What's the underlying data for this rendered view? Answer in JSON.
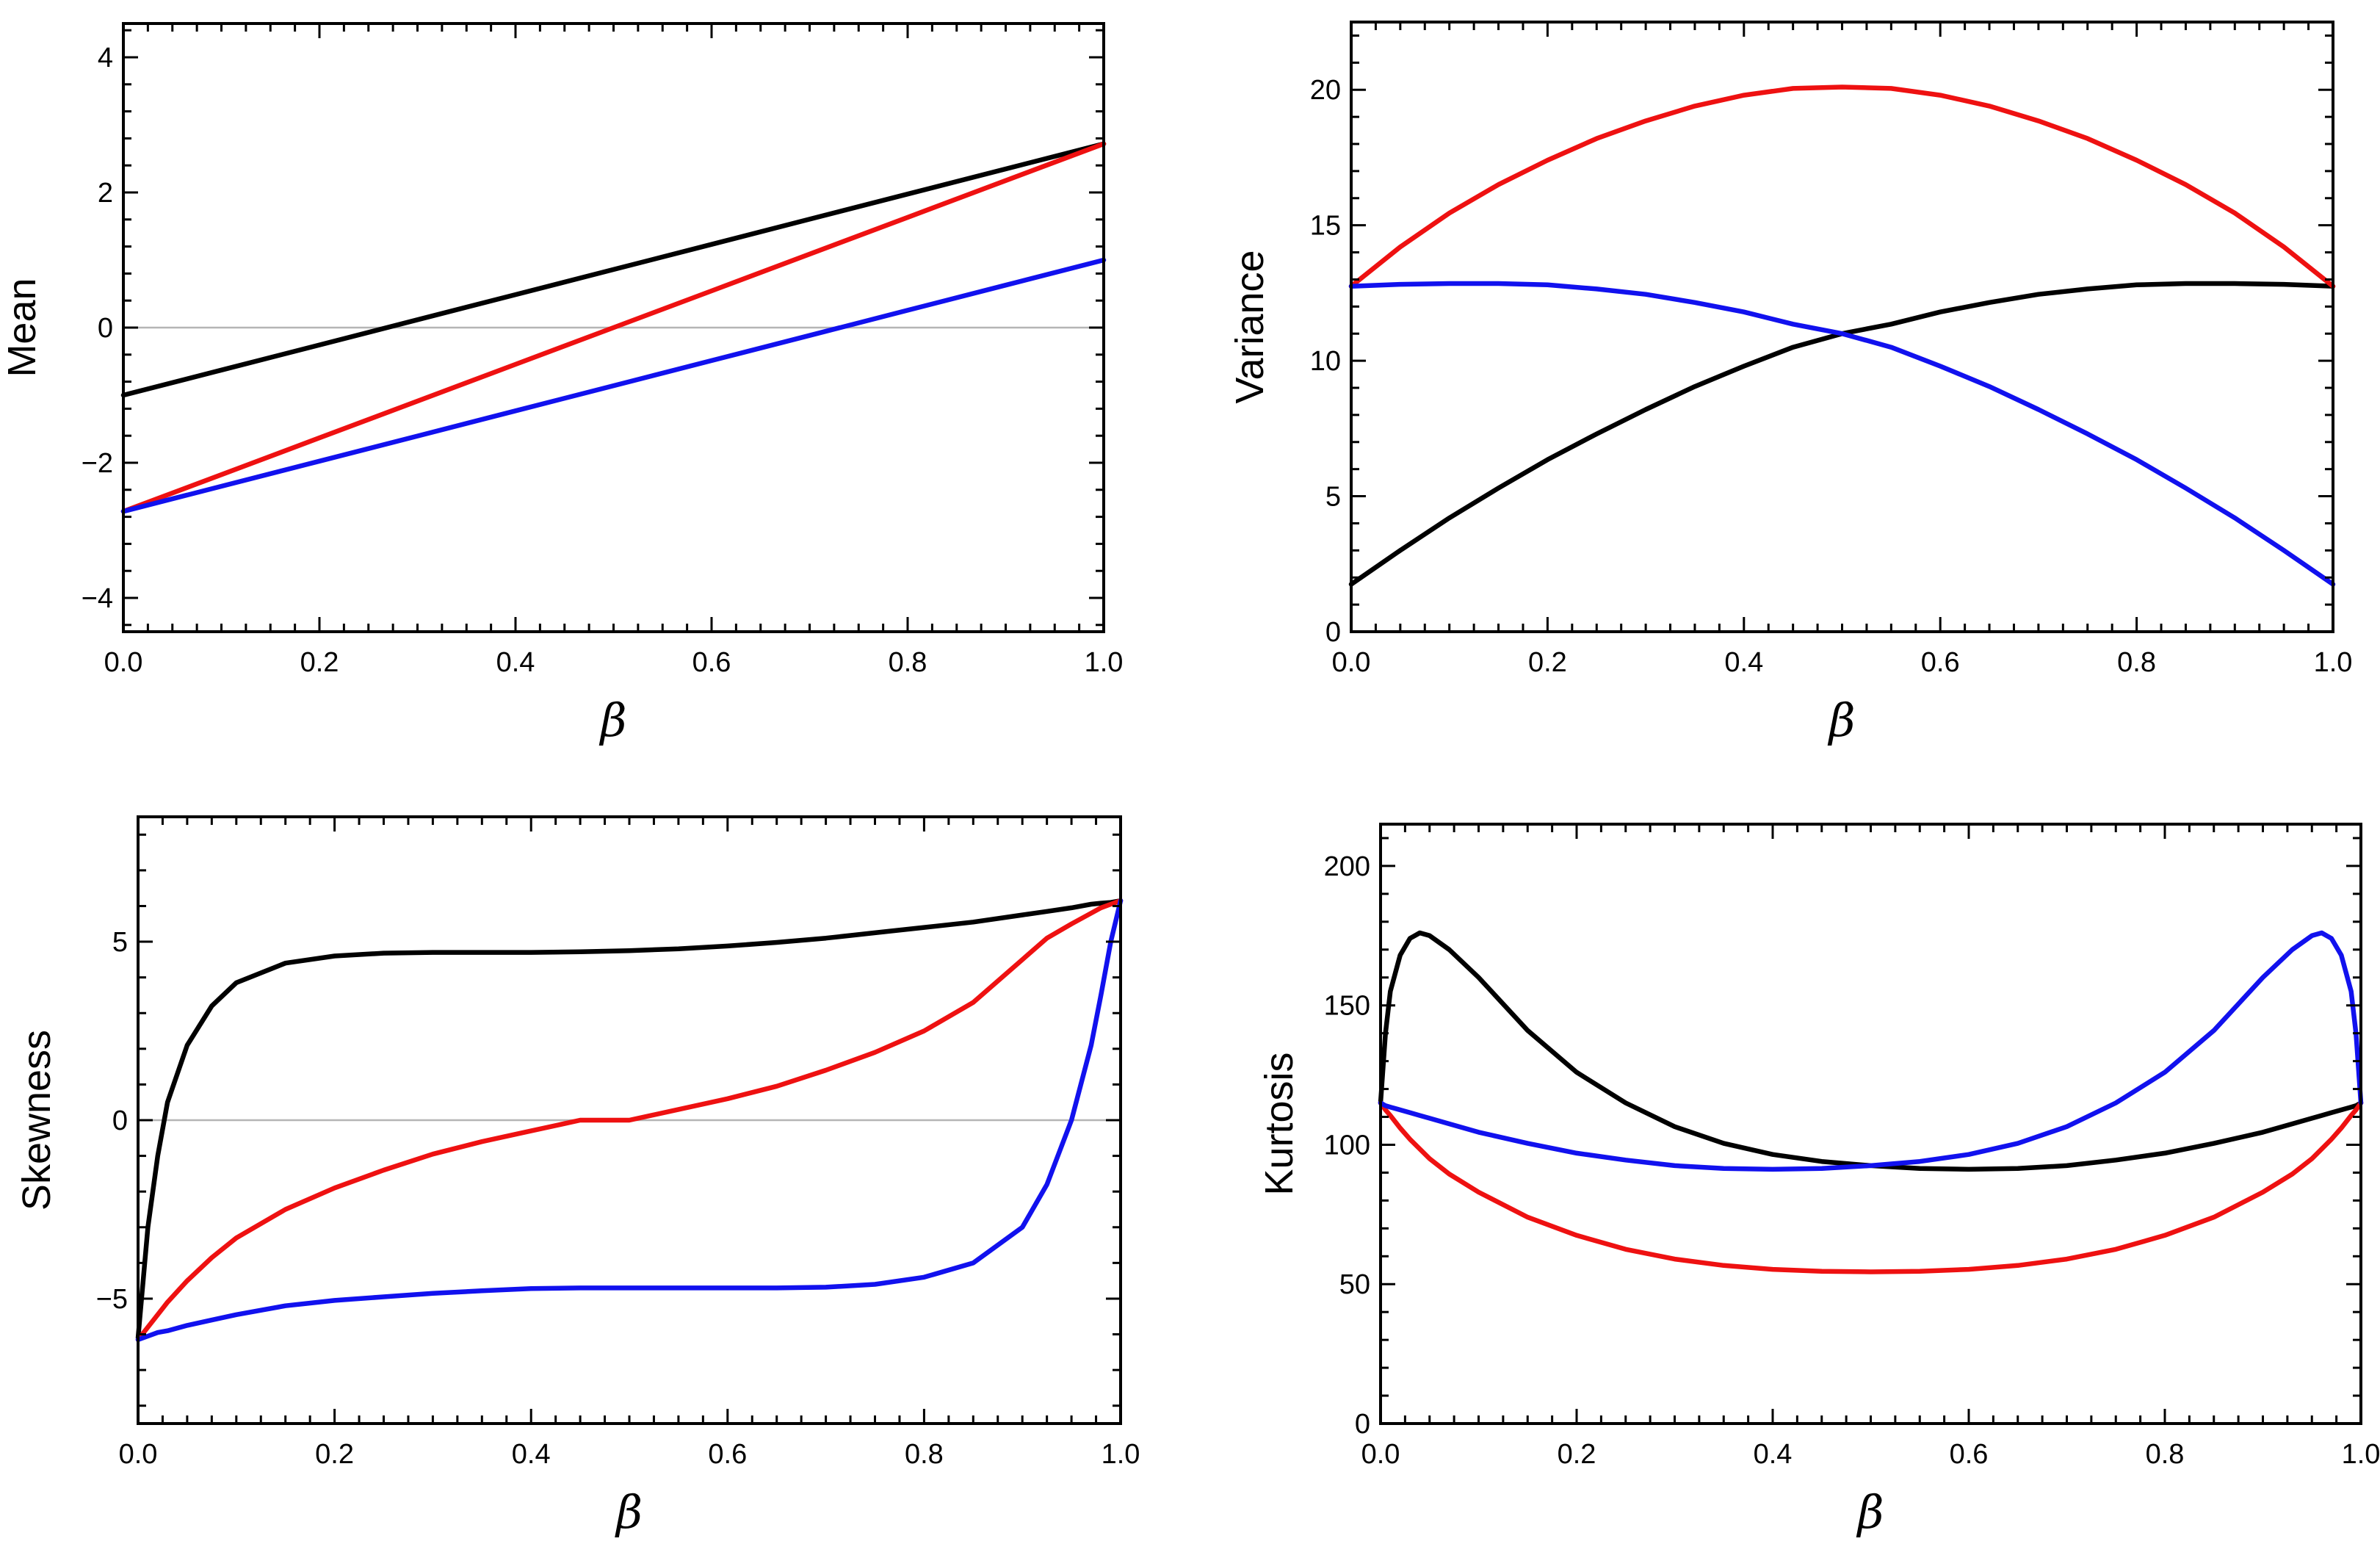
{
  "chart_data": [
    {
      "type": "line",
      "id": "mean",
      "title": "",
      "xlabel": "β",
      "ylabel": "Mean",
      "xlim": [
        0,
        1
      ],
      "ylim": [
        -4.5,
        4.5
      ],
      "xticks": [
        0.0,
        0.2,
        0.4,
        0.6,
        0.8,
        1.0
      ],
      "xtick_labels": [
        "0.0",
        "0.2",
        "0.4",
        "0.6",
        "0.8",
        "1.0"
      ],
      "yticks": [
        -4,
        -2,
        0,
        2,
        4
      ],
      "ytick_labels": [
        "−4",
        "−2",
        "0",
        "2",
        "4"
      ],
      "zero_line": true,
      "x": [
        0.0,
        0.1,
        0.2,
        0.3,
        0.4,
        0.5,
        0.6,
        0.7,
        0.8,
        0.9,
        1.0
      ],
      "series": [
        {
          "name": "black",
          "color": "#000000",
          "values": [
            -1.0,
            -0.628,
            -0.256,
            0.116,
            0.488,
            0.86,
            1.232,
            1.604,
            1.976,
            2.348,
            2.72
          ]
        },
        {
          "name": "red",
          "color": "#ee1111",
          "values": [
            -2.72,
            -2.176,
            -1.632,
            -1.088,
            -0.544,
            0.0,
            0.544,
            1.088,
            1.632,
            2.176,
            2.72
          ]
        },
        {
          "name": "blue",
          "color": "#1111ee",
          "values": [
            -2.72,
            -2.348,
            -1.976,
            -1.604,
            -1.232,
            -0.86,
            -0.488,
            -0.116,
            0.256,
            0.628,
            1.0
          ]
        }
      ]
    },
    {
      "type": "line",
      "id": "variance",
      "title": "",
      "xlabel": "β",
      "ylabel": "Variance",
      "xlim": [
        0,
        1
      ],
      "ylim": [
        0,
        22.5
      ],
      "xticks": [
        0.0,
        0.2,
        0.4,
        0.6,
        0.8,
        1.0
      ],
      "xtick_labels": [
        "0.0",
        "0.2",
        "0.4",
        "0.6",
        "0.8",
        "1.0"
      ],
      "yticks": [
        0,
        5,
        10,
        15,
        20
      ],
      "ytick_labels": [
        "0",
        "5",
        "10",
        "15",
        "20"
      ],
      "zero_line": false,
      "x": [
        0.0,
        0.05,
        0.1,
        0.15,
        0.2,
        0.25,
        0.3,
        0.35,
        0.4,
        0.45,
        0.5,
        0.55,
        0.6,
        0.65,
        0.7,
        0.75,
        0.8,
        0.85,
        0.9,
        0.95,
        1.0
      ],
      "series": [
        {
          "name": "black",
          "color": "#000000",
          "values": [
            1.75,
            3.0,
            4.2,
            5.3,
            6.35,
            7.3,
            8.2,
            9.05,
            9.8,
            10.5,
            11.0,
            11.35,
            11.8,
            12.15,
            12.45,
            12.65,
            12.8,
            12.85,
            12.85,
            12.82,
            12.75
          ]
        },
        {
          "name": "red",
          "color": "#ee1111",
          "values": [
            12.75,
            14.2,
            15.45,
            16.5,
            17.4,
            18.2,
            18.85,
            19.4,
            19.8,
            20.05,
            20.1,
            20.05,
            19.8,
            19.4,
            18.85,
            18.2,
            17.4,
            16.5,
            15.45,
            14.2,
            12.75
          ]
        },
        {
          "name": "blue",
          "color": "#1111ee",
          "values": [
            12.75,
            12.82,
            12.85,
            12.85,
            12.8,
            12.65,
            12.45,
            12.15,
            11.8,
            11.35,
            11.0,
            10.5,
            9.8,
            9.05,
            8.2,
            7.3,
            6.35,
            5.3,
            4.2,
            3.0,
            1.75
          ]
        }
      ]
    },
    {
      "type": "line",
      "id": "skewness",
      "title": "",
      "xlabel": "β",
      "ylabel": "Skewness",
      "xlim": [
        0,
        1
      ],
      "ylim": [
        -8.5,
        8.5
      ],
      "xticks": [
        0.0,
        0.2,
        0.4,
        0.6,
        0.8,
        1.0
      ],
      "xtick_labels": [
        "0.0",
        "0.2",
        "0.4",
        "0.6",
        "0.8",
        "1.0"
      ],
      "yticks": [
        -5,
        0,
        5
      ],
      "ytick_labels": [
        "−5",
        "0",
        "5"
      ],
      "zero_line": true,
      "x": [
        0.0,
        0.01,
        0.02,
        0.03,
        0.05,
        0.075,
        0.1,
        0.15,
        0.2,
        0.25,
        0.3,
        0.35,
        0.4,
        0.45,
        0.5,
        0.55,
        0.6,
        0.65,
        0.7,
        0.75,
        0.8,
        0.85,
        0.9,
        0.925,
        0.95,
        0.97,
        0.98,
        0.99,
        1.0
      ],
      "series": [
        {
          "name": "black",
          "color": "#000000",
          "values": [
            -6.1,
            -3.0,
            -1.0,
            0.5,
            2.1,
            3.2,
            3.85,
            4.4,
            4.6,
            4.68,
            4.7,
            4.7,
            4.7,
            4.72,
            4.75,
            4.8,
            4.88,
            4.98,
            5.1,
            5.25,
            5.4,
            5.55,
            5.75,
            5.85,
            5.95,
            6.05,
            6.08,
            6.1,
            6.15
          ]
        },
        {
          "name": "red",
          "color": "#ee1111",
          "values": [
            -6.15,
            -5.8,
            -5.45,
            -5.1,
            -4.5,
            -3.85,
            -3.3,
            -2.5,
            -1.9,
            -1.4,
            -0.95,
            -0.6,
            -0.3,
            0.0,
            0.0,
            0.3,
            0.6,
            0.95,
            1.4,
            1.9,
            2.5,
            3.3,
            4.5,
            5.1,
            5.5,
            5.8,
            5.95,
            6.05,
            6.15
          ]
        },
        {
          "name": "blue",
          "color": "#1111ee",
          "values": [
            -6.15,
            -6.05,
            -5.95,
            -5.9,
            -5.75,
            -5.6,
            -5.45,
            -5.2,
            -5.05,
            -4.95,
            -4.85,
            -4.78,
            -4.72,
            -4.7,
            -4.7,
            -4.7,
            -4.7,
            -4.7,
            -4.68,
            -4.6,
            -4.4,
            -4.0,
            -3.0,
            -1.8,
            0.0,
            2.1,
            3.5,
            5.0,
            6.15
          ]
        }
      ]
    },
    {
      "type": "line",
      "id": "kurtosis",
      "title": "",
      "xlabel": "β",
      "ylabel": "Kurtosis",
      "xlim": [
        0,
        1
      ],
      "ylim": [
        0,
        215
      ],
      "xticks": [
        0.0,
        0.2,
        0.4,
        0.6,
        0.8,
        1.0
      ],
      "xtick_labels": [
        "0.0",
        "0.2",
        "0.4",
        "0.6",
        "0.8",
        "1.0"
      ],
      "yticks": [
        0,
        50,
        100,
        150,
        200
      ],
      "ytick_labels": [
        "0",
        "50",
        "100",
        "150",
        "200"
      ],
      "zero_line": false,
      "x": [
        0.0,
        0.005,
        0.01,
        0.02,
        0.03,
        0.04,
        0.05,
        0.07,
        0.1,
        0.15,
        0.2,
        0.25,
        0.3,
        0.35,
        0.4,
        0.45,
        0.5,
        0.55,
        0.6,
        0.65,
        0.7,
        0.75,
        0.8,
        0.85,
        0.9,
        0.93,
        0.95,
        0.96,
        0.97,
        0.98,
        0.99,
        0.995,
        1.0
      ],
      "series": [
        {
          "name": "black",
          "color": "#000000",
          "values": [
            115,
            140,
            155,
            168,
            174,
            176,
            175,
            170,
            160,
            141,
            126,
            115,
            106.5,
            100.5,
            96.5,
            94,
            92.5,
            91.5,
            91.2,
            91.5,
            92.5,
            94.5,
            97,
            100.5,
            104.5,
            107.5,
            109.5,
            110.5,
            111.5,
            112.5,
            113.5,
            114,
            115
          ]
        },
        {
          "name": "red",
          "color": "#ee1111",
          "values": [
            115,
            112.5,
            110.5,
            106,
            102,
            98.5,
            95,
            89.5,
            83,
            74,
            67.5,
            62.5,
            59,
            56.7,
            55.3,
            54.6,
            54.4,
            54.6,
            55.3,
            56.7,
            59,
            62.5,
            67.5,
            74,
            83,
            89.5,
            95,
            98.5,
            102,
            106,
            110.5,
            112.5,
            115
          ]
        },
        {
          "name": "blue",
          "color": "#1111ee",
          "values": [
            115,
            114,
            113.5,
            112.5,
            111.5,
            110.5,
            109.5,
            107.5,
            104.5,
            100.5,
            97,
            94.5,
            92.5,
            91.5,
            91.2,
            91.5,
            92.5,
            94,
            96.5,
            100.5,
            106.5,
            115,
            126,
            141,
            160,
            170,
            175,
            176,
            174,
            168,
            155,
            140,
            115
          ]
        }
      ]
    }
  ]
}
